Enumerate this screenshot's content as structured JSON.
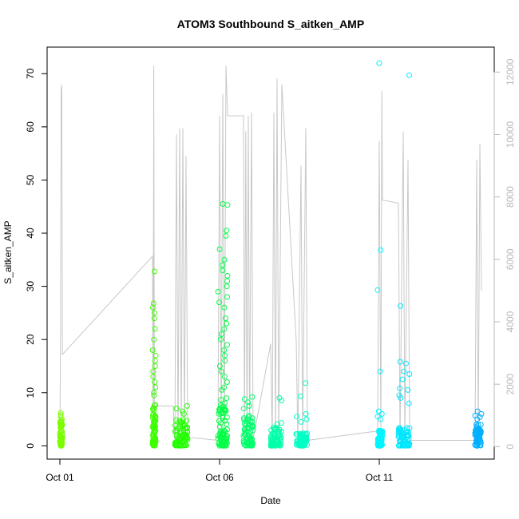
{
  "chart_data": {
    "type": "scatter",
    "title": "ATOM3 Southbound S_aitken_AMP",
    "xlabel": "Date",
    "ylabel": "S_aitken_AMP",
    "x_ticks": [
      "Oct 01",
      "Oct 06",
      "Oct 11"
    ],
    "x_tick_days": [
      1,
      6,
      11
    ],
    "xlim": [
      0.6,
      14.6
    ],
    "ylim": [
      -2.5,
      75
    ],
    "y_ticks": [
      0,
      10,
      20,
      30,
      40,
      50,
      60,
      70
    ],
    "y2lim": [
      -400,
      12800
    ],
    "y2_ticks": [
      0,
      2000,
      4000,
      6000,
      8000,
      10000,
      12000
    ],
    "grid": false,
    "legend": "none",
    "colors": {
      "secondary_line": "#c8c8c8",
      "axis": "#000000",
      "right_axis": "#b8b8b8"
    },
    "scatter_series": [
      {
        "color": "#7cfc00",
        "day_start": 1.0,
        "day_end": 1.08,
        "base_max": 5,
        "outliers": [
          5.8,
          6.2,
          5.5
        ]
      },
      {
        "color": "#3cff00",
        "day_start": 3.9,
        "day_end": 4.0,
        "base_max": 8,
        "outliers": [
          32.8,
          26.8,
          26,
          25,
          24,
          22,
          20,
          18,
          17,
          16,
          15,
          14,
          13,
          12,
          11,
          10,
          9.5
        ]
      },
      {
        "color": "#22ff00",
        "day_start": 4.6,
        "day_end": 5.0,
        "base_max": 5,
        "outliers": [
          7.5,
          7,
          6.5,
          6
        ]
      },
      {
        "color": "#00ff44",
        "day_start": 5.95,
        "day_end": 6.25,
        "base_max": 9,
        "outliers": [
          45.5,
          45.3,
          40.5,
          39.5,
          37,
          35,
          34,
          33,
          32,
          31,
          30,
          29,
          28,
          27,
          26,
          24,
          23,
          22,
          21,
          20,
          19,
          18,
          17,
          16,
          15,
          14,
          13,
          12,
          11,
          10.5
        ]
      },
      {
        "color": "#00ff6a",
        "day_start": 6.75,
        "day_end": 7.05,
        "base_max": 6,
        "outliers": [
          9.2,
          8.8,
          8.2,
          7.5,
          7
        ]
      },
      {
        "color": "#00ffaa",
        "day_start": 7.6,
        "day_end": 7.95,
        "base_max": 3.5,
        "outliers": [
          9,
          8.5,
          4.3,
          4.1
        ]
      },
      {
        "color": "#00ffc4",
        "day_start": 8.4,
        "day_end": 8.75,
        "base_max": 2.5,
        "outliers": [
          11.8,
          9.3,
          6,
          5.5,
          5,
          4.5
        ]
      },
      {
        "color": "#00f5ff",
        "day_start": 10.95,
        "day_end": 11.1,
        "base_max": 3,
        "outliers": [
          72,
          36.8,
          29.3,
          14,
          6.5,
          6,
          5.5,
          5
        ]
      },
      {
        "color": "#00e6ff",
        "day_start": 11.6,
        "day_end": 11.95,
        "base_max": 3.5,
        "outliers": [
          69.7,
          26.3,
          15.8,
          15.5,
          14,
          13.5,
          12.5,
          10.8,
          10.5,
          9.5,
          9,
          8
        ]
      },
      {
        "color": "#00b0ff",
        "day_start": 14.0,
        "day_end": 14.2,
        "base_max": 4,
        "outliers": [
          6.5,
          6,
          5.7,
          5.4,
          5
        ]
      }
    ],
    "line_series": {
      "name": "",
      "axis": "right",
      "points": [
        [
          1.0,
          100
        ],
        [
          1.02,
          3500
        ],
        [
          1.04,
          11400
        ],
        [
          1.06,
          11600
        ],
        [
          1.08,
          2950
        ],
        [
          3.9,
          6100
        ],
        [
          3.92,
          100
        ],
        [
          3.94,
          12200
        ],
        [
          3.96,
          800
        ],
        [
          3.98,
          1300
        ],
        [
          4.55,
          1300
        ],
        [
          4.6,
          100
        ],
        [
          4.65,
          10000
        ],
        [
          4.7,
          200
        ],
        [
          4.75,
          10200
        ],
        [
          4.8,
          300
        ],
        [
          4.85,
          10200
        ],
        [
          4.9,
          400
        ],
        [
          4.95,
          9300
        ],
        [
          5.0,
          300
        ],
        [
          5.95,
          200
        ],
        [
          6.0,
          10600
        ],
        [
          6.05,
          200
        ],
        [
          6.1,
          11300
        ],
        [
          6.15,
          300
        ],
        [
          6.2,
          12200
        ],
        [
          6.25,
          10600
        ],
        [
          6.75,
          10600
        ],
        [
          6.78,
          100
        ],
        [
          6.82,
          10100
        ],
        [
          6.86,
          200
        ],
        [
          6.9,
          10600
        ],
        [
          6.94,
          300
        ],
        [
          7.0,
          10700
        ],
        [
          7.05,
          200
        ],
        [
          7.6,
          3300
        ],
        [
          7.65,
          100
        ],
        [
          7.7,
          10700
        ],
        [
          7.75,
          200
        ],
        [
          7.8,
          11800
        ],
        [
          7.85,
          300
        ],
        [
          7.95,
          11600
        ],
        [
          8.4,
          3400
        ],
        [
          8.45,
          200
        ],
        [
          8.55,
          9000
        ],
        [
          8.6,
          300
        ],
        [
          8.7,
          10200
        ],
        [
          8.75,
          200
        ],
        [
          10.95,
          500
        ],
        [
          11.0,
          9800
        ],
        [
          11.05,
          200
        ],
        [
          11.08,
          11400
        ],
        [
          11.1,
          7900
        ],
        [
          11.6,
          7800
        ],
        [
          11.65,
          200
        ],
        [
          11.75,
          10100
        ],
        [
          11.8,
          300
        ],
        [
          11.9,
          9200
        ],
        [
          11.95,
          200
        ],
        [
          14.0,
          200
        ],
        [
          14.05,
          9200
        ],
        [
          14.1,
          300
        ],
        [
          14.15,
          9700
        ],
        [
          14.2,
          5000
        ]
      ]
    }
  }
}
